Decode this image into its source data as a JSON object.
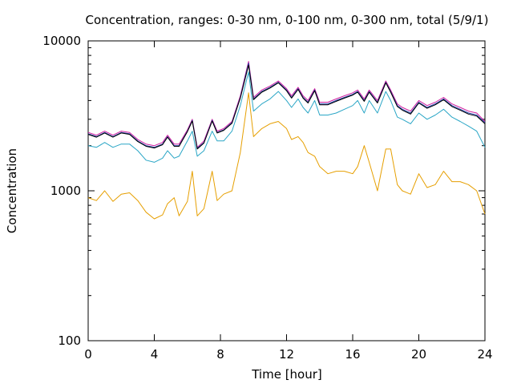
{
  "chart_data": {
    "type": "line",
    "title": "Concentration, ranges: 0-30 nm, 0-100 nm, 0-300 nm, total (5/9/1)",
    "xlabel": "Time [hour]",
    "ylabel": "Concentration",
    "xlim": [
      0,
      24
    ],
    "ylim": [
      100,
      10000
    ],
    "yscale": "log",
    "xticks": [
      0,
      4,
      8,
      12,
      16,
      20,
      24
    ],
    "xtick_labels": [
      "0",
      "4",
      "8",
      "12",
      "16",
      "20",
      "24"
    ],
    "yticks": [
      100,
      1000,
      10000
    ],
    "ytick_labels": [
      "100",
      "1000",
      "10000"
    ],
    "grid": false,
    "legend": "none",
    "x": [
      0,
      0.5,
      1,
      1.5,
      2,
      2.5,
      3,
      3.5,
      4,
      4.5,
      4.8,
      5.2,
      5.5,
      6,
      6.3,
      6.6,
      7,
      7.5,
      7.8,
      8.2,
      8.7,
      9.2,
      9.7,
      10,
      10.5,
      11,
      11.5,
      12,
      12.3,
      12.7,
      13,
      13.3,
      13.7,
      14,
      14.5,
      15,
      15.5,
      16,
      16.3,
      16.7,
      17,
      17.5,
      18,
      18.3,
      18.7,
      19,
      19.5,
      20,
      20.5,
      21,
      21.5,
      22,
      22.5,
      23,
      23.5,
      24
    ],
    "series": [
      {
        "color": "#d01fa0",
        "values": [
          2450,
          2350,
          2500,
          2350,
          2500,
          2450,
          2200,
          2050,
          2000,
          2100,
          2350,
          2050,
          2050,
          2550,
          3000,
          1950,
          2150,
          3000,
          2500,
          2600,
          2900,
          4300,
          7300,
          4200,
          4700,
          5000,
          5400,
          4800,
          4300,
          4900,
          4300,
          4000,
          4800,
          3900,
          3900,
          4100,
          4300,
          4500,
          4700,
          4100,
          4700,
          4000,
          5400,
          4700,
          3800,
          3600,
          3400,
          4000,
          3700,
          3900,
          4200,
          3800,
          3600,
          3400,
          3300,
          2900
        ]
      },
      {
        "color": "#1f3fa8",
        "values": [
          2400,
          2300,
          2450,
          2300,
          2450,
          2400,
          2150,
          2000,
          1950,
          2050,
          2300,
          2000,
          2000,
          2500,
          2950,
          1920,
          2100,
          2950,
          2450,
          2550,
          2850,
          4200,
          7100,
          4100,
          4600,
          4900,
          5300,
          4700,
          4200,
          4800,
          4200,
          3900,
          4700,
          3800,
          3800,
          4000,
          4200,
          4400,
          4600,
          4000,
          4600,
          3900,
          5300,
          4600,
          3700,
          3500,
          3300,
          3900,
          3600,
          3800,
          4100,
          3700,
          3500,
          3300,
          3200,
          2850
        ]
      },
      {
        "color": "#000000",
        "values": [
          2380,
          2280,
          2430,
          2280,
          2430,
          2380,
          2130,
          1980,
          1930,
          2030,
          2280,
          1980,
          1980,
          2480,
          2920,
          1900,
          2080,
          2920,
          2430,
          2530,
          2820,
          4150,
          6900,
          4050,
          4550,
          4850,
          5250,
          4650,
          4150,
          4750,
          4150,
          3850,
          4650,
          3750,
          3750,
          3950,
          4150,
          4350,
          4550,
          3950,
          4550,
          3850,
          5250,
          4550,
          3650,
          3450,
          3250,
          3850,
          3550,
          3750,
          4050,
          3650,
          3450,
          3250,
          3150,
          2800
        ]
      },
      {
        "color": "#2aa6c6",
        "values": [
          2000,
          1950,
          2100,
          1950,
          2050,
          2050,
          1850,
          1600,
          1550,
          1650,
          1850,
          1650,
          1700,
          2150,
          2500,
          1700,
          1850,
          2500,
          2150,
          2150,
          2500,
          3700,
          6200,
          3400,
          3800,
          4100,
          4600,
          4000,
          3600,
          4100,
          3600,
          3300,
          4000,
          3200,
          3200,
          3300,
          3500,
          3700,
          4000,
          3300,
          4000,
          3300,
          4600,
          4000,
          3100,
          3000,
          2800,
          3300,
          3000,
          3200,
          3500,
          3100,
          2900,
          2700,
          2500,
          1950
        ]
      },
      {
        "color": "#e69f00",
        "values": [
          900,
          860,
          1000,
          850,
          950,
          970,
          860,
          720,
          650,
          690,
          820,
          900,
          680,
          850,
          1350,
          680,
          760,
          1350,
          860,
          950,
          1000,
          1800,
          4500,
          2300,
          2600,
          2800,
          2900,
          2600,
          2200,
          2300,
          2100,
          1800,
          1700,
          1450,
          1300,
          1350,
          1350,
          1300,
          1450,
          2000,
          1550,
          1000,
          1900,
          1900,
          1100,
          1000,
          950,
          1300,
          1050,
          1100,
          1350,
          1150,
          1150,
          1100,
          1000,
          700
        ]
      }
    ]
  }
}
